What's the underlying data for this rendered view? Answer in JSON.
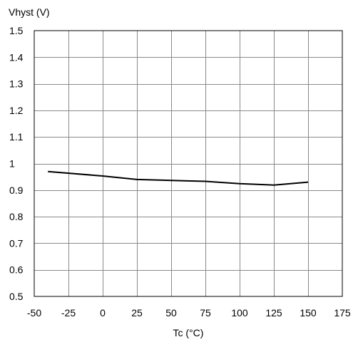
{
  "chart_data": {
    "type": "line",
    "title": "",
    "ylabel": "Vhyst (V)",
    "xlabel": "Tc (°C)",
    "xlim": [
      -50,
      175
    ],
    "ylim": [
      0.5,
      1.5
    ],
    "x_ticks": [
      -50,
      -25,
      0,
      25,
      50,
      75,
      100,
      125,
      150,
      175
    ],
    "y_ticks": [
      0.5,
      0.6,
      0.7,
      0.8,
      0.9,
      1.0,
      1.1,
      1.2,
      1.3,
      1.4,
      1.5
    ],
    "x_tick_labels": [
      "-50",
      "-25",
      "0",
      "25",
      "50",
      "75",
      "100",
      "125",
      "150",
      "175"
    ],
    "y_tick_labels": [
      "0.5",
      "0.6",
      "0.7",
      "0.8",
      "0.9",
      "1",
      "1.1",
      "1.2",
      "1.3",
      "1.4",
      "1.5"
    ],
    "grid": true,
    "series": [
      {
        "x": [
          -40,
          0,
          25,
          75,
          100,
          125,
          150
        ],
        "y": [
          0.97,
          0.953,
          0.94,
          0.933,
          0.924,
          0.919,
          0.93
        ],
        "color": "#000000"
      }
    ]
  }
}
